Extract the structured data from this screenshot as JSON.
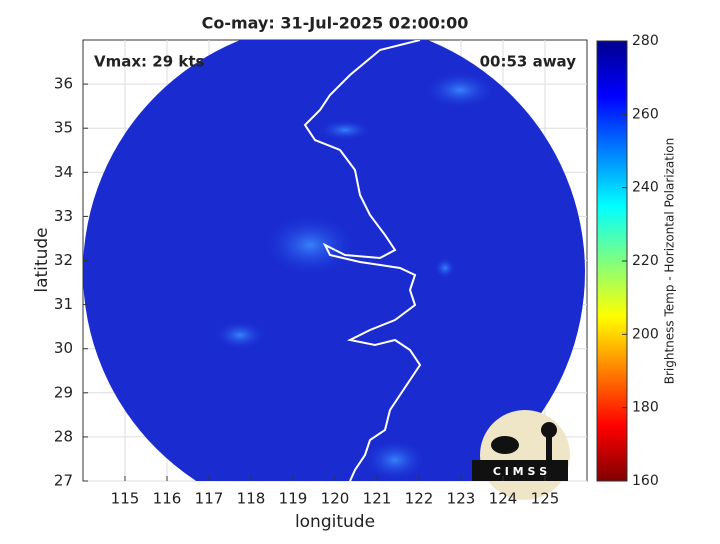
{
  "chart_data": {
    "type": "map",
    "title": "Co-may: 31-Jul-2025 02:00:00",
    "xlabel": "longitude",
    "ylabel": "latitude",
    "xlim": [
      114,
      126
    ],
    "ylim": [
      27,
      37
    ],
    "xticks": [
      115,
      116,
      117,
      118,
      119,
      120,
      121,
      122,
      123,
      124,
      125
    ],
    "yticks": [
      27,
      28,
      29,
      30,
      31,
      32,
      33,
      34,
      35,
      36
    ],
    "grid": true,
    "annotations": {
      "left": "Vmax: 29 kts",
      "right": "00:53 away"
    },
    "colorbar": {
      "label": "Brightness Temp - Horizontal Polarization",
      "lim": [
        160,
        280
      ],
      "ticks": [
        160,
        180,
        200,
        220,
        240,
        260,
        280
      ]
    },
    "logo_text": "C I M S S"
  }
}
